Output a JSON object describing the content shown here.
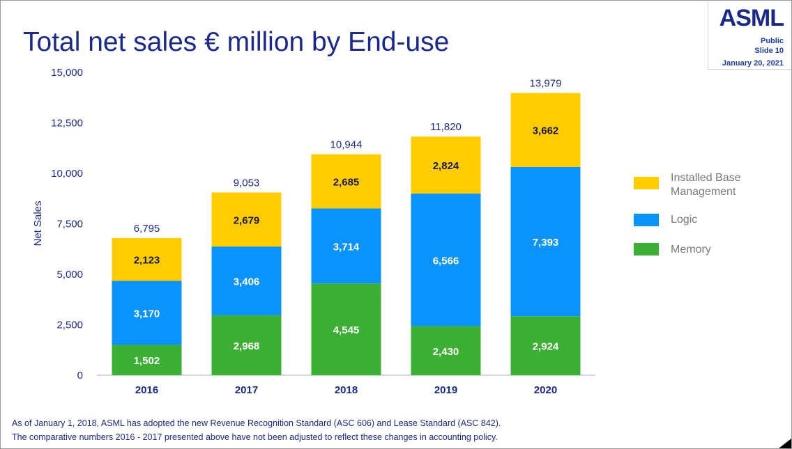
{
  "slide": {
    "title": "Total net sales € million by End-use",
    "logo": "ASML",
    "classification": "Public",
    "slide_number": "Slide 10",
    "date": "January 20, 2021",
    "footnote_line1": "As of January 1, 2018, ASML has adopted the new Revenue Recognition Standard (ASC 606) and Lease Standard (ASC 842).",
    "footnote_line2": "The comparative numbers 2016 - 2017 presented above have not been adjusted to reflect these changes in accounting policy."
  },
  "colors": {
    "memory": "#3cb034",
    "logic": "#0a93fa",
    "installed_base": "#ffcc00",
    "axis_text": "#1a2a8c"
  },
  "chart_data": {
    "type": "bar",
    "stacked": true,
    "title": "Total net sales € million by End-use",
    "xlabel": "",
    "ylabel": "Net Sales",
    "ylim": [
      0,
      15000
    ],
    "yticks": [
      0,
      2500,
      5000,
      7500,
      10000,
      12500,
      15000
    ],
    "ytick_labels": [
      "0",
      "2,500",
      "5,000",
      "7,500",
      "10,000",
      "12,500",
      "15,000"
    ],
    "categories": [
      "2016",
      "2017",
      "2018",
      "2019",
      "2020"
    ],
    "series": [
      {
        "name": "Memory",
        "key": "memory",
        "values": [
          1502,
          2968,
          4545,
          2430,
          2924
        ],
        "labels": [
          "1,502",
          "2,968",
          "4,545",
          "2,430",
          "2,924"
        ]
      },
      {
        "name": "Logic",
        "key": "logic",
        "values": [
          3170,
          3406,
          3714,
          6566,
          7393
        ],
        "labels": [
          "3,170",
          "3,406",
          "3,714",
          "6,566",
          "7,393"
        ]
      },
      {
        "name": "Installed Base Management",
        "key": "installed_base",
        "values": [
          2123,
          2679,
          2685,
          2824,
          3662
        ],
        "labels": [
          "2,123",
          "2,679",
          "2,685",
          "2,824",
          "3,662"
        ]
      }
    ],
    "totals": [
      6795,
      9053,
      10944,
      11820,
      13979
    ],
    "total_labels": [
      "6,795",
      "9,053",
      "10,944",
      "11,820",
      "13,979"
    ],
    "legend": [
      "Installed Base Management",
      "Logic",
      "Memory"
    ],
    "legend_position": "right",
    "grid": false
  }
}
